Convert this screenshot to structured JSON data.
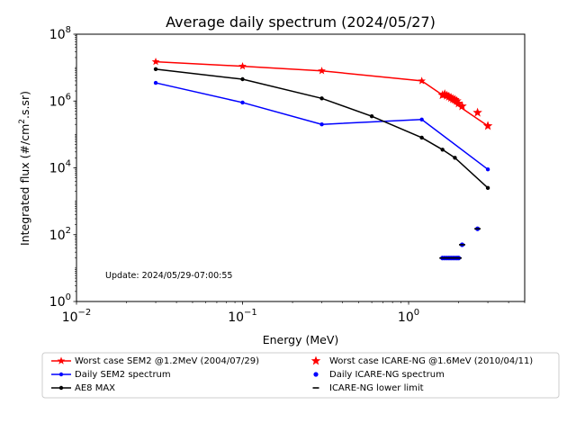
{
  "chart_data": {
    "type": "line",
    "title": "Average daily spectrum (2024/05/27)",
    "xlabel": "Energy (MeV)",
    "ylabel_main": "Integrated flux (#/cm",
    "ylabel_sup": "2",
    "ylabel_tail": ".s.sr)",
    "xscale": "log",
    "yscale": "log",
    "xlim": [
      0.01,
      5
    ],
    "ylim": [
      1,
      100000000
    ],
    "xticks": [
      {
        "value": 0.01,
        "base": "10",
        "exp": "−2"
      },
      {
        "value": 0.1,
        "base": "10",
        "exp": "−1"
      },
      {
        "value": 1,
        "base": "10",
        "exp": "0"
      }
    ],
    "yticks": [
      {
        "value": 1,
        "base": "10",
        "exp": "0"
      },
      {
        "value": 100,
        "base": "10",
        "exp": "2"
      },
      {
        "value": 10000,
        "base": "10",
        "exp": "4"
      },
      {
        "value": 1000000,
        "base": "10",
        "exp": "6"
      },
      {
        "value": 100000000,
        "base": "10",
        "exp": "8"
      }
    ],
    "annotation": "Update: 2024/05/29-07:00:55",
    "legend_position": "below",
    "series": [
      {
        "name": "Worst case SEM2 @1.2MeV (2004/07/29)",
        "color": "#ff0000",
        "marker": "star",
        "line": true,
        "x": [
          0.03,
          0.1,
          0.3,
          1.2,
          3.0
        ],
        "y": [
          15000000,
          11000000,
          8000000,
          4000000,
          180000
        ]
      },
      {
        "name": "Daily SEM2 spectrum",
        "color": "#0000ff",
        "marker": "dot",
        "line": true,
        "x": [
          0.03,
          0.1,
          0.3,
          1.2,
          3.0
        ],
        "y": [
          3500000,
          900000,
          200000,
          280000,
          9000
        ]
      },
      {
        "name": "AE8 MAX",
        "color": "#000000",
        "marker": "dot",
        "line": true,
        "x": [
          0.03,
          0.1,
          0.3,
          0.6,
          1.2,
          1.6,
          1.9,
          3.0
        ],
        "y": [
          9000000,
          4500000,
          1200000,
          350000,
          80000,
          35000,
          20000,
          2500
        ]
      },
      {
        "name": "Worst case ICARE-NG @1.6MeV (2010/04/11)",
        "color": "#ff0000",
        "marker": "star",
        "line": false,
        "x": [
          1.6,
          1.65,
          1.7,
          1.75,
          1.8,
          1.85,
          1.9,
          1.95,
          2.0,
          2.1,
          2.6,
          3.0
        ],
        "y": [
          1500000,
          1600000,
          1450000,
          1350000,
          1250000,
          1150000,
          1100000,
          1000000,
          850000,
          700000,
          450000,
          180000
        ]
      },
      {
        "name": "Daily ICARE-NG spectrum",
        "color": "#0000ff",
        "marker": "dot",
        "line": false,
        "x": [
          1.6,
          1.65,
          1.7,
          1.75,
          1.8,
          1.85,
          1.9,
          1.95,
          2.0,
          2.1,
          2.6
        ],
        "y": [
          20,
          20,
          20,
          20,
          20,
          20,
          20,
          20,
          20,
          50,
          150
        ]
      },
      {
        "name": "ICARE-NG lower limit",
        "color": "#000000",
        "marker": "dash",
        "line": false,
        "x": [
          1.6,
          1.65,
          1.7,
          1.75,
          1.8,
          1.85,
          1.9,
          1.95,
          2.0,
          2.1,
          2.6
        ],
        "y": [
          20,
          20,
          20,
          20,
          20,
          20,
          20,
          20,
          20,
          50,
          150
        ]
      }
    ]
  }
}
